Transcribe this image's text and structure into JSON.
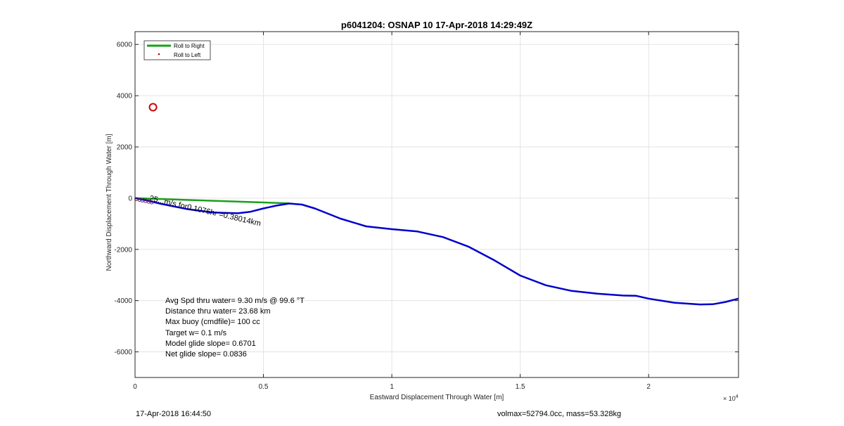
{
  "chart_data": {
    "type": "line",
    "title": "p6041204: OSNAP 10 17-Apr-2018 14:29:49Z",
    "xlabel": "Eastward Displacement Through Water [m]",
    "ylabel": "Northward Displacement Through Water [m]",
    "x_exponent": "× 10",
    "x_exponent_power": "4",
    "xlim": [
      0,
      2.35
    ],
    "ylim": [
      -7000,
      6500
    ],
    "xticks": [
      0,
      0.5,
      1,
      1.5,
      2
    ],
    "xtick_labels": [
      "0",
      "0.5",
      "1",
      "1.5",
      "2"
    ],
    "yticks": [
      -6000,
      -4000,
      -2000,
      0,
      2000,
      4000,
      6000
    ],
    "ytick_labels": [
      "-6000",
      "-4000",
      "-2000",
      "0",
      "2000",
      "4000",
      "6000"
    ],
    "grid": true,
    "legend_placement": "top-left",
    "legend": [
      {
        "label": "Roll to Right",
        "color": "#1aa01a",
        "style": "line"
      },
      {
        "label": "Roll to Left",
        "color": "#cc0000",
        "style": "dot"
      }
    ],
    "series": [
      {
        "name": "Roll to Right",
        "color": "#1aa01a",
        "x": [
          0.0,
          0.6
        ],
        "y": [
          0,
          -200
        ]
      },
      {
        "color": "#0000cc",
        "x": [
          0.0,
          0.05,
          0.1,
          0.2,
          0.3,
          0.4,
          0.45,
          0.5,
          0.55,
          0.6,
          0.65,
          0.7,
          0.8,
          0.9,
          1.0,
          1.1,
          1.2,
          1.3,
          1.4,
          1.5,
          1.6,
          1.7,
          1.8,
          1.9,
          1.95,
          2.0,
          2.1,
          2.2,
          2.25,
          2.3,
          2.35
        ],
        "y": [
          0,
          -100,
          -220,
          -420,
          -560,
          -590,
          -530,
          -400,
          -290,
          -210,
          -250,
          -400,
          -800,
          -1100,
          -1210,
          -1300,
          -1520,
          -1900,
          -2430,
          -3020,
          -3400,
          -3620,
          -3730,
          -3800,
          -3810,
          -3920,
          -4080,
          -4150,
          -4140,
          -4050,
          -3920
        ]
      }
    ],
    "markers": [
      {
        "x": 0.07,
        "y": 3550,
        "shape": "circle",
        "color": "#cc0000"
      }
    ],
    "overlay_label": {
      "text": "...25...m/s for0.1076hr =0.38014km",
      "x": 0.03,
      "y": -30,
      "angle": 13
    },
    "annotations": [
      "Avg Spd thru water=  9.30 m/s @  99.6 °T",
      "Distance thru water= 23.68 km",
      "Max buoy (cmdfile)= 100 cc",
      "Target w= 0.1 m/s",
      "Model glide slope= 0.6701",
      "Net glide slope= 0.0836"
    ]
  },
  "footer": {
    "timestamp": "17-Apr-2018 16:44:50",
    "info": "volmax=52794.0cc, mass=53.328kg"
  }
}
